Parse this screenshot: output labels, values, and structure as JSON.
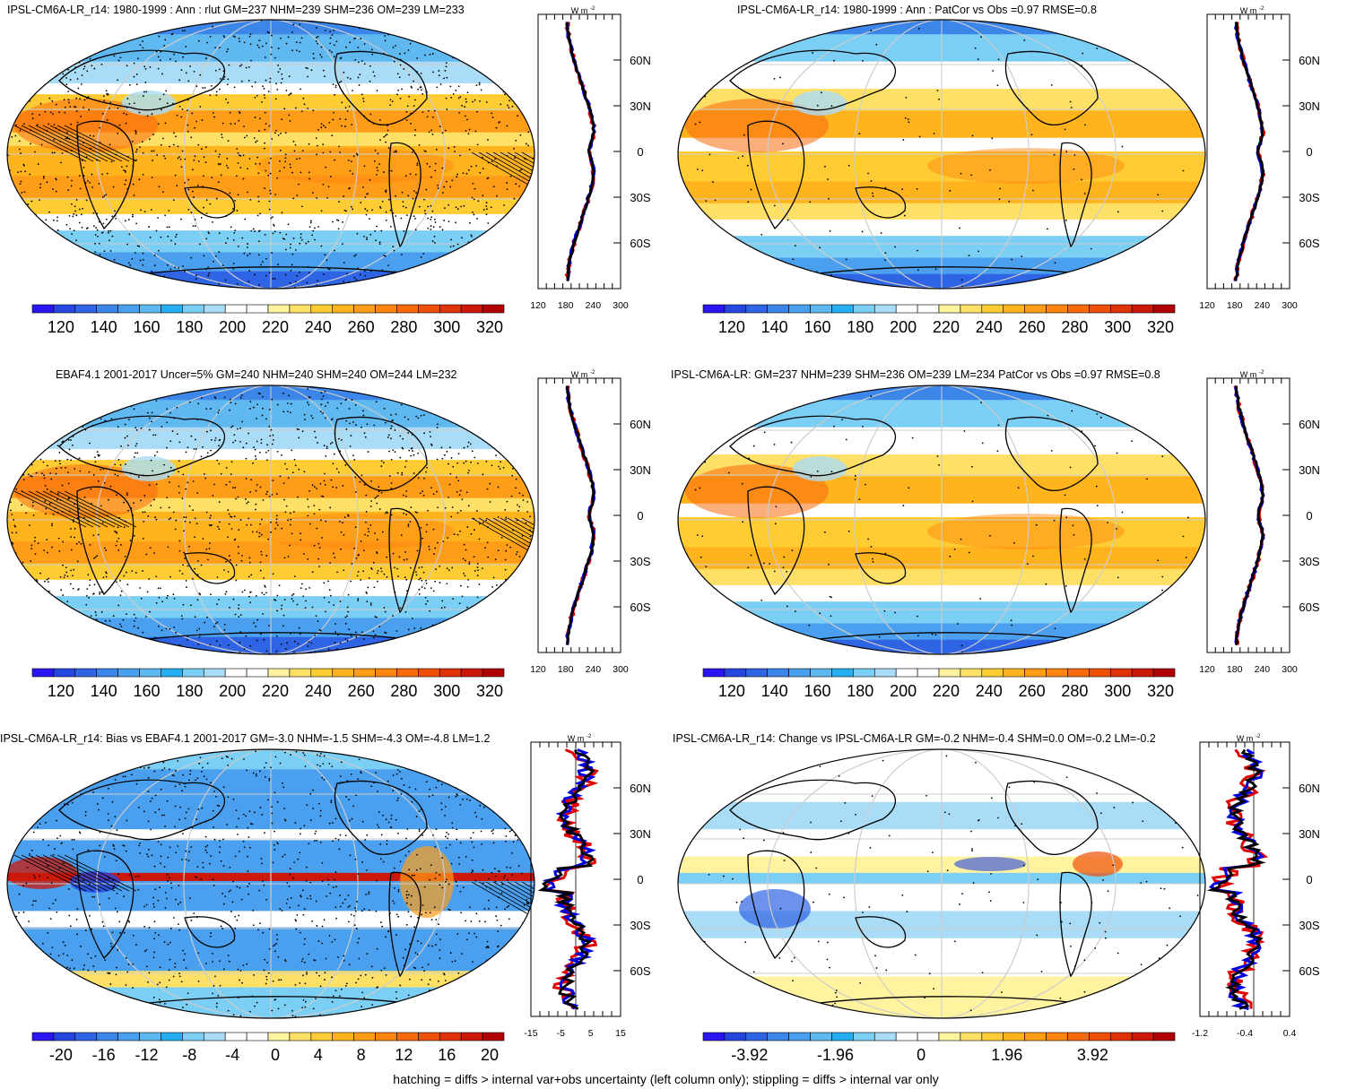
{
  "panels": [
    {
      "id": "p1",
      "title": "IPSL-CM6A-LR_r14: 1980-1999 : Ann : rlut GM=237 NHM=239 SHM=236 OM=239 LM=233",
      "colorbar": {
        "labels": [
          "120",
          "140",
          "160",
          "180",
          "200",
          "220",
          "240",
          "260",
          "280",
          "300",
          "320"
        ],
        "palette": "abs"
      },
      "profile": {
        "unit": "W m",
        "unit_sup": "-2",
        "x_ticks": [
          "120",
          "180",
          "240",
          "300"
        ],
        "lat_labels": [
          "60N",
          "30N",
          "0",
          "30S",
          "60S"
        ]
      }
    },
    {
      "id": "p2",
      "title": "IPSL-CM6A-LR_r14: 1980-1999 : Ann : PatCor vs Obs =0.97 RMSE=0.8",
      "colorbar": {
        "labels": [
          "120",
          "140",
          "160",
          "180",
          "200",
          "220",
          "240",
          "260",
          "280",
          "300",
          "320"
        ],
        "palette": "abs"
      },
      "profile": {
        "unit": "W m",
        "unit_sup": "-2",
        "x_ticks": [
          "120",
          "180",
          "240",
          "300"
        ],
        "lat_labels": [
          "60N",
          "30N",
          "0",
          "30S",
          "60S"
        ]
      }
    },
    {
      "id": "p3",
      "title": "EBAF4.1 2001-2017 Uncer=5% GM=240 NHM=240 SHM=240 OM=244 LM=232",
      "colorbar": {
        "labels": [
          "120",
          "140",
          "160",
          "180",
          "200",
          "220",
          "240",
          "260",
          "280",
          "300",
          "320"
        ],
        "palette": "abs"
      },
      "profile": {
        "unit": "W m",
        "unit_sup": "-2",
        "x_ticks": [
          "120",
          "180",
          "240",
          "300"
        ],
        "lat_labels": [
          "60N",
          "30N",
          "0",
          "30S",
          "60S"
        ]
      }
    },
    {
      "id": "p4",
      "title": "IPSL-CM6A-LR: GM=237 NHM=239 SHM=236 OM=239 LM=234 PatCor vs Obs =0.97 RMSE=0.8",
      "colorbar": {
        "labels": [
          "120",
          "140",
          "160",
          "180",
          "200",
          "220",
          "240",
          "260",
          "280",
          "300",
          "320"
        ],
        "palette": "abs"
      },
      "profile": {
        "unit": "W m",
        "unit_sup": "-2",
        "x_ticks": [
          "120",
          "180",
          "240",
          "300"
        ],
        "lat_labels": [
          "60N",
          "30N",
          "0",
          "30S",
          "60S"
        ]
      }
    },
    {
      "id": "p5",
      "title": "IPSL-CM6A-LR_r14: Bias vs EBAF4.1 2001-2017 GM=-3.0 NHM=-1.5 SHM=-4.3 OM=-4.8 LM=1.2",
      "colorbar": {
        "labels": [
          "-20",
          "-16",
          "-12",
          "-8",
          "-4",
          "0",
          "4",
          "8",
          "12",
          "16",
          "20"
        ],
        "palette": "diff"
      },
      "profile": {
        "unit": "W m",
        "unit_sup": "-2",
        "x_ticks": [
          "-15",
          "-5",
          "5",
          "15"
        ],
        "lat_labels": [
          "60N",
          "30N",
          "0",
          "30S",
          "60S"
        ]
      }
    },
    {
      "id": "p6",
      "title": "IPSL-CM6A-LR_r14: Change vs IPSL-CM6A-LR GM=-0.2 NHM=-0.4 SHM=0.0 OM=-0.2 LM=-0.2",
      "colorbar": {
        "labels": [
          "-3.92",
          "-1.96",
          "0",
          "1.96",
          "3.92"
        ],
        "palette": "diff"
      },
      "profile": {
        "unit": "W m",
        "unit_sup": "-2",
        "x_ticks": [
          "-1.2",
          "-0.4",
          "0.4"
        ],
        "lat_labels": [
          "60N",
          "30N",
          "0",
          "30S",
          "60S"
        ]
      }
    }
  ],
  "footer": "hatching = diffs > internal var+obs uncertainty (left column only); stippling = diffs > internal var only",
  "colors": {
    "abs_palette": [
      "#2a16f0",
      "#2646e0",
      "#2f64e4",
      "#3c86ea",
      "#4aa0ee",
      "#5fb8f0",
      "#25aef0",
      "#7ccff4",
      "#a9dcf6",
      "#ffffff",
      "#ffffff",
      "#fff3a0",
      "#ffe066",
      "#ffcc33",
      "#ffb41e",
      "#ff9c18",
      "#ff8410",
      "#f86a0c",
      "#ee500a",
      "#e03208",
      "#cc1808",
      "#b00006"
    ],
    "diff_palette": [
      "#2a16f0",
      "#2646e0",
      "#2f64e4",
      "#3c86ea",
      "#4aa0ee",
      "#5fb8f0",
      "#25aef0",
      "#7ccff4",
      "#a9dcf6",
      "#ffffff",
      "#ffffff",
      "#fff3a0",
      "#ffe066",
      "#ffcc33",
      "#ffb41e",
      "#ff9c18",
      "#ff8410",
      "#f86a0c",
      "#ee500a",
      "#e03208",
      "#cc1808",
      "#b00006"
    ],
    "line_model": "#e00000",
    "line_obs": "#0000dd",
    "line_mean": "#000000",
    "land_outline": "#000000",
    "grid": "#cccccc"
  }
}
